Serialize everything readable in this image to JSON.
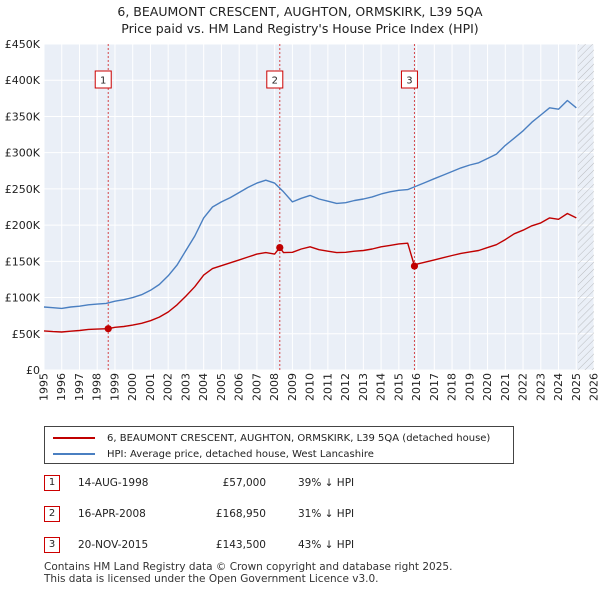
{
  "title": {
    "line1": "6, BEAUMONT CRESCENT, AUGHTON, ORMSKIRK, L39 5QA",
    "line2": "Price paid vs. HM Land Registry's House Price Index (HPI)"
  },
  "colors": {
    "hpi": "#4a7fc1",
    "price": "#c00000",
    "marker_border": "#cc0000",
    "grid": "#d6dbe4",
    "plot_bg": "#eaeff7",
    "hatch": "#999999"
  },
  "chart_data": {
    "type": "line",
    "title": "",
    "xlabel": "",
    "ylabel": "",
    "xlim": [
      1995,
      2026
    ],
    "ylim": [
      0,
      450000
    ],
    "x_ticks": [
      "1995",
      "1996",
      "1997",
      "1998",
      "1999",
      "2000",
      "2001",
      "2002",
      "2003",
      "2004",
      "2005",
      "2006",
      "2007",
      "2008",
      "2009",
      "2010",
      "2011",
      "2012",
      "2013",
      "2014",
      "2015",
      "2016",
      "2017",
      "2018",
      "2019",
      "2020",
      "2021",
      "2022",
      "2023",
      "2024",
      "2025",
      "2026"
    ],
    "y_ticks": [
      {
        "value": 0,
        "label": "£0"
      },
      {
        "value": 50000,
        "label": "£50K"
      },
      {
        "value": 100000,
        "label": "£100K"
      },
      {
        "value": 150000,
        "label": "£150K"
      },
      {
        "value": 200000,
        "label": "£200K"
      },
      {
        "value": 250000,
        "label": "£250K"
      },
      {
        "value": 300000,
        "label": "£300K"
      },
      {
        "value": 350000,
        "label": "£350K"
      },
      {
        "value": 400000,
        "label": "£400K"
      },
      {
        "value": 450000,
        "label": "£450K"
      }
    ],
    "projection_start": 2025.1,
    "series": [
      {
        "name": "HPI: Average price, detached house, West Lancashire",
        "color": "#4a7fc1",
        "x": [
          1995,
          1995.5,
          1996,
          1996.5,
          1997,
          1997.5,
          1998,
          1998.5,
          1999,
          1999.5,
          2000,
          2000.5,
          2001,
          2001.5,
          2002,
          2002.5,
          2003,
          2003.5,
          2004,
          2004.5,
          2005,
          2005.5,
          2006,
          2006.5,
          2007,
          2007.5,
          2008,
          2008.5,
          2009,
          2009.5,
          2010,
          2010.5,
          2011,
          2011.5,
          2012,
          2012.5,
          2013,
          2013.5,
          2014,
          2014.5,
          2015,
          2015.5,
          2016,
          2016.5,
          2017,
          2017.5,
          2018,
          2018.5,
          2019,
          2019.5,
          2020,
          2020.5,
          2021,
          2021.5,
          2022,
          2022.5,
          2023,
          2023.5,
          2024,
          2024.5,
          2025
        ],
        "values": [
          87000,
          86000,
          85000,
          87000,
          88000,
          90000,
          91000,
          92000,
          95000,
          97000,
          100000,
          104000,
          110000,
          118000,
          130000,
          145000,
          165000,
          185000,
          210000,
          225000,
          232000,
          238000,
          245000,
          252000,
          258000,
          262000,
          258000,
          246000,
          232000,
          237000,
          241000,
          236000,
          233000,
          230000,
          231000,
          234000,
          236000,
          239000,
          243000,
          246000,
          248000,
          249000,
          254000,
          259000,
          264000,
          269000,
          274000,
          279000,
          283000,
          286000,
          292000,
          298000,
          310000,
          320000,
          330000,
          342000,
          352000,
          362000,
          360000,
          372000,
          362000
        ]
      },
      {
        "name": "6, BEAUMONT CRESCENT, AUGHTON, ORMSKIRK, L39 5QA (detached house)",
        "color": "#c00000",
        "x": [
          1995,
          1995.5,
          1996,
          1996.5,
          1997,
          1997.5,
          1998,
          1998.62,
          1999,
          1999.5,
          2000,
          2000.5,
          2001,
          2001.5,
          2002,
          2002.5,
          2003,
          2003.5,
          2004,
          2004.5,
          2005,
          2005.5,
          2006,
          2006.5,
          2007,
          2007.5,
          2008,
          2008.29,
          2008.5,
          2009,
          2009.5,
          2010,
          2010.5,
          2011,
          2011.5,
          2012,
          2012.5,
          2013,
          2013.5,
          2014,
          2014.5,
          2015,
          2015.5,
          2015.88,
          2016,
          2016.5,
          2017,
          2017.5,
          2018,
          2018.5,
          2019,
          2019.5,
          2020,
          2020.5,
          2021,
          2021.5,
          2022,
          2022.5,
          2023,
          2023.5,
          2024,
          2024.5,
          2025
        ],
        "values": [
          54000,
          53000,
          52500,
          53500,
          54500,
          56000,
          56500,
          57000,
          59000,
          60000,
          62000,
          64500,
          68000,
          73000,
          80000,
          90000,
          102000,
          115000,
          131000,
          140000,
          144000,
          148000,
          152000,
          156000,
          160000,
          162000,
          160000,
          168950,
          162000,
          162500,
          167000,
          170000,
          166000,
          164000,
          162000,
          162500,
          164000,
          165000,
          167000,
          170000,
          172000,
          174000,
          175000,
          143500,
          146000,
          149000,
          152000,
          155000,
          158000,
          161000,
          163000,
          165000,
          169000,
          173000,
          180000,
          188000,
          193000,
          199000,
          203000,
          210000,
          208000,
          216000,
          210000
        ]
      }
    ],
    "sales": [
      {
        "num": "1",
        "x": 1998.62,
        "value": 57000
      },
      {
        "num": "2",
        "x": 2008.29,
        "value": 168950
      },
      {
        "num": "3",
        "x": 2015.88,
        "value": 143500
      }
    ]
  },
  "legend": {
    "price_label": "6, BEAUMONT CRESCENT, AUGHTON, ORMSKIRK, L39 5QA (detached house)",
    "hpi_label": "HPI: Average price, detached house, West Lancashire"
  },
  "sales_table": [
    {
      "num": "1",
      "date": "14-AUG-1998",
      "price": "£57,000",
      "hpi": "39% ↓ HPI"
    },
    {
      "num": "2",
      "date": "16-APR-2008",
      "price": "£168,950",
      "hpi": "31% ↓ HPI"
    },
    {
      "num": "3",
      "date": "20-NOV-2015",
      "price": "£143,500",
      "hpi": "43% ↓ HPI"
    }
  ],
  "footer": {
    "line1": "Contains HM Land Registry data © Crown copyright and database right 2025.",
    "line2": "This data is licensed under the Open Government Licence v3.0."
  }
}
